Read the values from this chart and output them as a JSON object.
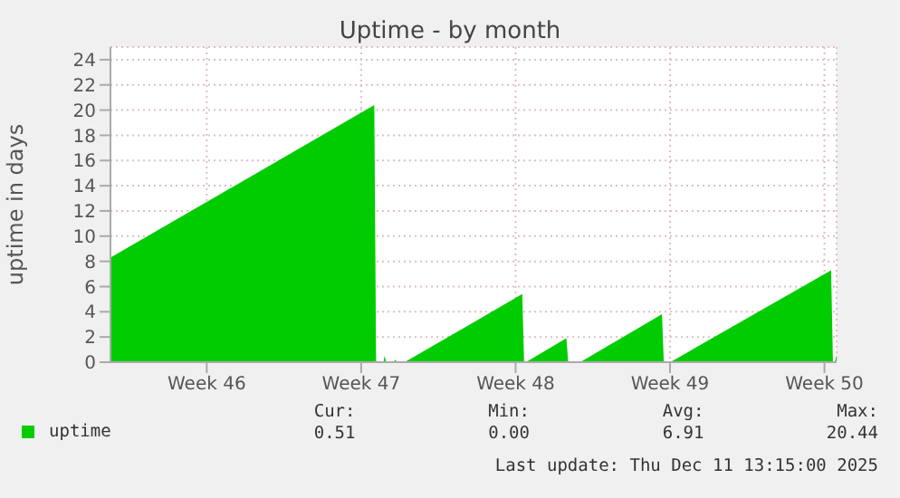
{
  "chart_data": {
    "type": "area",
    "title": "Uptime - by month",
    "ylabel": "uptime in days",
    "x": [
      "2025-11-08T15:15",
      "2025-11-20T14:15",
      "2025-11-20T16:15",
      "2025-11-21T00:15",
      "2025-11-21T01:15",
      "2025-11-21T03:15",
      "2025-11-21T11:15",
      "2025-11-21T13:15",
      "2025-11-21T15:15",
      "2025-11-21T23:15",
      "2025-11-27T07:15",
      "2025-11-27T09:15",
      "2025-11-27T11:15",
      "2025-11-29T07:15",
      "2025-11-29T09:15",
      "2025-11-29T22:15",
      "2025-12-03T15:15",
      "2025-12-03T17:15",
      "2025-12-04T00:15",
      "2025-12-11T07:15",
      "2025-12-11T09:15",
      "2025-12-11T11:15",
      "2025-12-11T13:15"
    ],
    "series": [
      {
        "name": "uptime",
        "color": "#00cc00",
        "values": [
          8.3,
          20.4,
          0,
          0,
          0.5,
          0,
          0,
          0.2,
          0,
          0,
          5.4,
          0,
          0,
          1.9,
          0,
          0,
          3.8,
          0,
          0,
          7.3,
          0,
          0,
          0.51
        ]
      }
    ],
    "xlim": [
      "2025-11-08T15:15",
      "2025-12-11T13:15"
    ],
    "xticks": [
      {
        "value": "2025-11-13",
        "label": "Week 46"
      },
      {
        "value": "2025-11-20",
        "label": "Week 47"
      },
      {
        "value": "2025-11-27",
        "label": "Week 48"
      },
      {
        "value": "2025-12-04",
        "label": "Week 49"
      },
      {
        "value": "2025-12-11",
        "label": "Week 50"
      }
    ],
    "ylim": [
      0,
      25
    ],
    "yticks": [
      0,
      2,
      4,
      6,
      8,
      10,
      12,
      14,
      16,
      18,
      20,
      22,
      24
    ],
    "grid": true,
    "legend": "bottom",
    "annotations": [
      "Cur:",
      "Min:",
      "Avg:",
      "Max:",
      "0.51",
      "0.00",
      "6.91",
      "20.44",
      "Last update: Thu Dec 11 13:15:00 2025"
    ]
  }
}
